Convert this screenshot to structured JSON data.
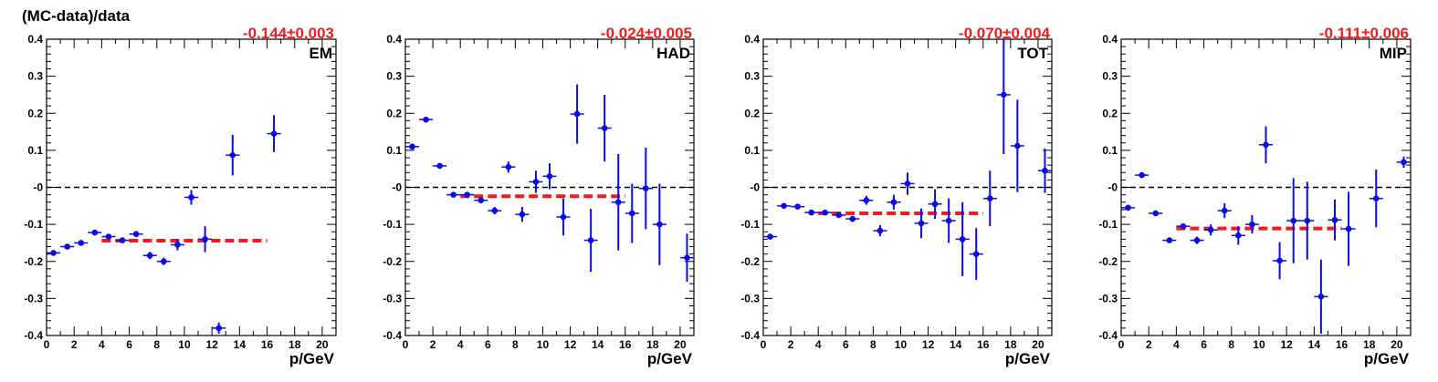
{
  "figure": {
    "ylabel": "(MC-data)/data"
  },
  "colors": {
    "points": "#0a0ae6",
    "fit": "#ee1c1c",
    "zero_line": "#000000",
    "annotation": "#ee1c1c"
  },
  "chart_data": [
    {
      "type": "scatter",
      "panel_label": "EM",
      "annotation": "-0.144±0.003",
      "xlabel": "p/GeV",
      "xlim": [
        0,
        21
      ],
      "ylim": [
        -0.4,
        0.4
      ],
      "xticks": [
        "0",
        "2",
        "4",
        "6",
        "8",
        "10",
        "12",
        "14",
        "16",
        "18",
        "20"
      ],
      "yticks": [
        "-0.4",
        "-0.3",
        "-0.2",
        "-0.1",
        "-0",
        "0.1",
        "0.2",
        "0.3",
        "0.4"
      ],
      "fit": {
        "value": -0.144,
        "x_range": [
          4,
          16
        ]
      },
      "zero_line": 0,
      "points": [
        {
          "x": 0.5,
          "y": -0.177,
          "err": 0.006
        },
        {
          "x": 1.5,
          "y": -0.16,
          "err": 0.005
        },
        {
          "x": 2.5,
          "y": -0.15,
          "err": 0.005
        },
        {
          "x": 3.5,
          "y": -0.122,
          "err": 0.005
        },
        {
          "x": 4.5,
          "y": -0.133,
          "err": 0.006
        },
        {
          "x": 5.5,
          "y": -0.143,
          "err": 0.006
        },
        {
          "x": 6.5,
          "y": -0.126,
          "err": 0.008
        },
        {
          "x": 7.5,
          "y": -0.184,
          "err": 0.01
        },
        {
          "x": 8.5,
          "y": -0.2,
          "err": 0.01
        },
        {
          "x": 9.5,
          "y": -0.155,
          "err": 0.015
        },
        {
          "x": 10.5,
          "y": -0.027,
          "err": 0.02
        },
        {
          "x": 11.5,
          "y": -0.14,
          "err": 0.035
        },
        {
          "x": 12.5,
          "y": -0.38,
          "err": 0.015
        },
        {
          "x": 13.5,
          "y": 0.087,
          "err": 0.055
        },
        {
          "x": 16.5,
          "y": 0.145,
          "err": 0.05
        }
      ]
    },
    {
      "type": "scatter",
      "panel_label": "HAD",
      "annotation": "-0.024±0.005",
      "xlabel": "p/GeV",
      "xlim": [
        0,
        21
      ],
      "ylim": [
        -0.4,
        0.4
      ],
      "xticks": [
        "0",
        "2",
        "4",
        "6",
        "8",
        "10",
        "12",
        "14",
        "16",
        "18",
        "20"
      ],
      "yticks": [
        "-0.4",
        "-0.3",
        "-0.2",
        "-0.1",
        "-0",
        "0.1",
        "0.2",
        "0.3",
        "0.4"
      ],
      "fit": {
        "value": -0.024,
        "x_range": [
          4,
          16
        ]
      },
      "zero_line": 0,
      "points": [
        {
          "x": 0.5,
          "y": 0.11,
          "err": 0.007
        },
        {
          "x": 1.5,
          "y": 0.183,
          "err": 0.005
        },
        {
          "x": 2.5,
          "y": 0.058,
          "err": 0.005
        },
        {
          "x": 3.5,
          "y": -0.02,
          "err": 0.005
        },
        {
          "x": 4.5,
          "y": -0.02,
          "err": 0.006
        },
        {
          "x": 5.5,
          "y": -0.035,
          "err": 0.008
        },
        {
          "x": 6.5,
          "y": -0.063,
          "err": 0.01
        },
        {
          "x": 7.5,
          "y": 0.055,
          "err": 0.015
        },
        {
          "x": 8.5,
          "y": -0.073,
          "err": 0.02
        },
        {
          "x": 9.5,
          "y": 0.015,
          "err": 0.03
        },
        {
          "x": 10.5,
          "y": 0.03,
          "err": 0.035
        },
        {
          "x": 11.5,
          "y": -0.08,
          "err": 0.05
        },
        {
          "x": 12.5,
          "y": 0.198,
          "err": 0.08
        },
        {
          "x": 13.5,
          "y": -0.143,
          "err": 0.085
        },
        {
          "x": 14.5,
          "y": 0.16,
          "err": 0.09
        },
        {
          "x": 15.5,
          "y": -0.04,
          "err": 0.13
        },
        {
          "x": 16.5,
          "y": -0.07,
          "err": 0.08
        },
        {
          "x": 17.5,
          "y": -0.003,
          "err": 0.11
        },
        {
          "x": 18.5,
          "y": -0.1,
          "err": 0.11
        },
        {
          "x": 20.5,
          "y": -0.19,
          "err": 0.065
        }
      ]
    },
    {
      "type": "scatter",
      "panel_label": "TOT",
      "annotation": "-0.070±0.004",
      "xlabel": "p/GeV",
      "xlim": [
        0,
        21
      ],
      "ylim": [
        -0.4,
        0.4
      ],
      "xticks": [
        "0",
        "2",
        "4",
        "6",
        "8",
        "10",
        "12",
        "14",
        "16",
        "18",
        "20"
      ],
      "yticks": [
        "-0.4",
        "-0.3",
        "-0.2",
        "-0.1",
        "-0",
        "0.1",
        "0.2",
        "0.3",
        "0.4"
      ],
      "fit": {
        "value": -0.07,
        "x_range": [
          4,
          16
        ]
      },
      "zero_line": 0,
      "points": [
        {
          "x": 0.5,
          "y": -0.133,
          "err": 0.008
        },
        {
          "x": 1.5,
          "y": -0.05,
          "err": 0.005
        },
        {
          "x": 2.5,
          "y": -0.052,
          "err": 0.005
        },
        {
          "x": 3.5,
          "y": -0.068,
          "err": 0.005
        },
        {
          "x": 4.5,
          "y": -0.068,
          "err": 0.006
        },
        {
          "x": 5.5,
          "y": -0.075,
          "err": 0.006
        },
        {
          "x": 6.5,
          "y": -0.085,
          "err": 0.008
        },
        {
          "x": 7.5,
          "y": -0.035,
          "err": 0.012
        },
        {
          "x": 8.5,
          "y": -0.117,
          "err": 0.015
        },
        {
          "x": 9.5,
          "y": -0.04,
          "err": 0.02
        },
        {
          "x": 10.5,
          "y": 0.01,
          "err": 0.03
        },
        {
          "x": 11.5,
          "y": -0.097,
          "err": 0.04
        },
        {
          "x": 12.5,
          "y": -0.045,
          "err": 0.04
        },
        {
          "x": 13.5,
          "y": -0.09,
          "err": 0.06
        },
        {
          "x": 14.5,
          "y": -0.14,
          "err": 0.1
        },
        {
          "x": 15.5,
          "y": -0.18,
          "err": 0.07
        },
        {
          "x": 16.5,
          "y": -0.03,
          "err": 0.075
        },
        {
          "x": 17.5,
          "y": 0.25,
          "err": 0.16
        },
        {
          "x": 18.5,
          "y": 0.112,
          "err": 0.125
        },
        {
          "x": 20.5,
          "y": 0.045,
          "err": 0.06
        }
      ]
    },
    {
      "type": "scatter",
      "panel_label": "MIP",
      "annotation": "-0.111±0.006",
      "xlabel": "p/GeV",
      "xlim": [
        0,
        21
      ],
      "ylim": [
        -0.4,
        0.4
      ],
      "xticks": [
        "0",
        "2",
        "4",
        "6",
        "8",
        "10",
        "12",
        "14",
        "16",
        "18",
        "20"
      ],
      "yticks": [
        "-0.4",
        "-0.3",
        "-0.2",
        "-0.1",
        "-0",
        "0.1",
        "0.2",
        "0.3",
        "0.4"
      ],
      "fit": {
        "value": -0.111,
        "x_range": [
          4,
          16
        ]
      },
      "zero_line": 0,
      "points": [
        {
          "x": 0.5,
          "y": -0.055,
          "err": 0.007
        },
        {
          "x": 1.5,
          "y": 0.033,
          "err": 0.005
        },
        {
          "x": 2.5,
          "y": -0.07,
          "err": 0.005
        },
        {
          "x": 3.5,
          "y": -0.143,
          "err": 0.006
        },
        {
          "x": 4.5,
          "y": -0.105,
          "err": 0.007
        },
        {
          "x": 5.5,
          "y": -0.143,
          "err": 0.01
        },
        {
          "x": 6.5,
          "y": -0.115,
          "err": 0.015
        },
        {
          "x": 7.5,
          "y": -0.063,
          "err": 0.02
        },
        {
          "x": 8.5,
          "y": -0.13,
          "err": 0.025
        },
        {
          "x": 9.5,
          "y": -0.1,
          "err": 0.025
        },
        {
          "x": 10.5,
          "y": 0.115,
          "err": 0.05
        },
        {
          "x": 11.5,
          "y": -0.198,
          "err": 0.05
        },
        {
          "x": 12.5,
          "y": -0.09,
          "err": 0.115
        },
        {
          "x": 13.5,
          "y": -0.09,
          "err": 0.105
        },
        {
          "x": 14.5,
          "y": -0.295,
          "err": 0.1
        },
        {
          "x": 15.5,
          "y": -0.088,
          "err": 0.055
        },
        {
          "x": 16.5,
          "y": -0.112,
          "err": 0.1
        },
        {
          "x": 18.5,
          "y": -0.03,
          "err": 0.078
        },
        {
          "x": 20.5,
          "y": 0.068,
          "err": 0.015
        }
      ]
    }
  ]
}
